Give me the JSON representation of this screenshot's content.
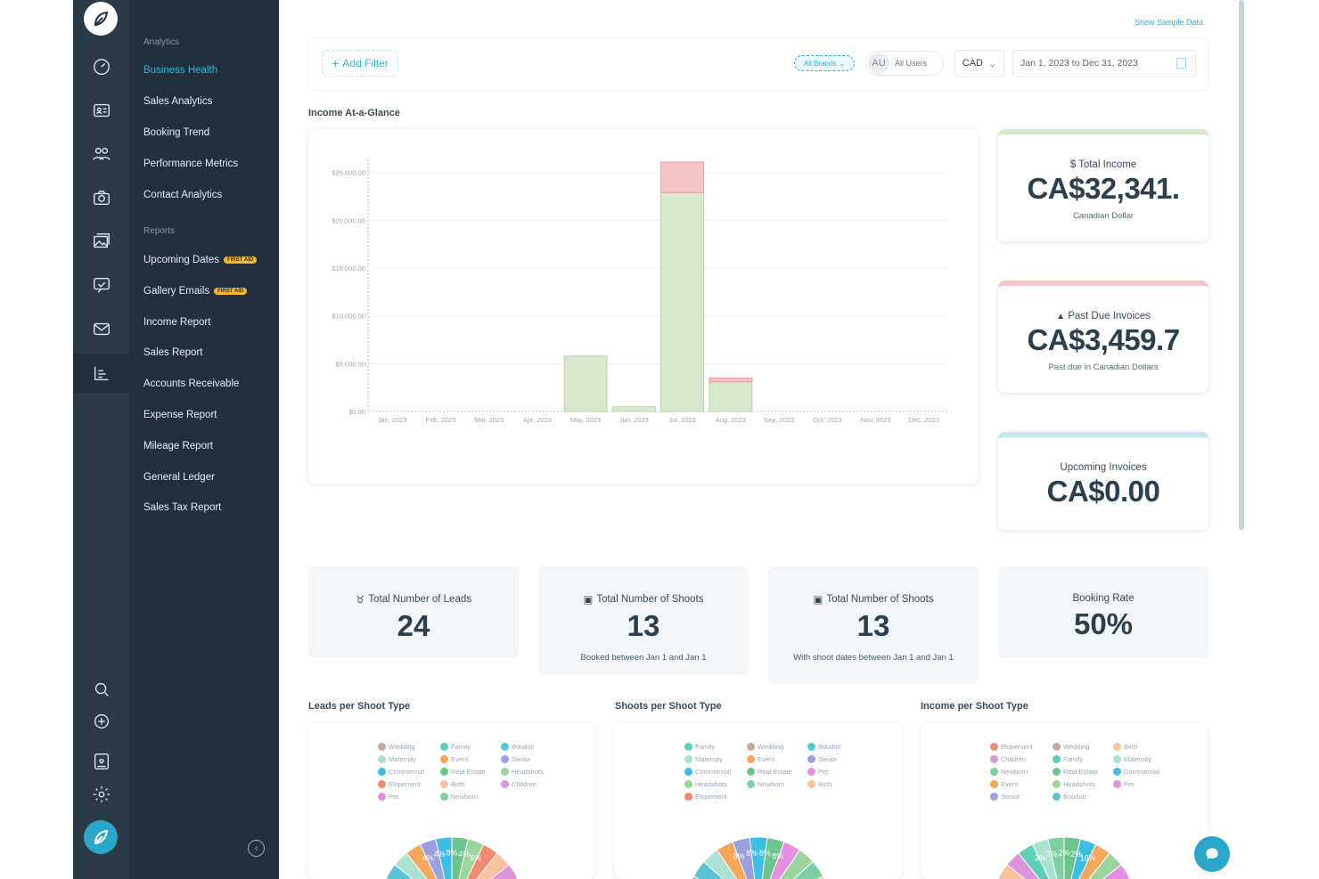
{
  "sidebar": {
    "section_analytics": "Analytics",
    "analytics_items": [
      "Business Health",
      "Sales Analytics",
      "Booking Trend",
      "Performance Metrics",
      "Contact Analytics"
    ],
    "section_reports": "Reports",
    "report_items": [
      {
        "label": "Upcoming Dates",
        "badge": "FIRST AID"
      },
      {
        "label": "Gallery Emails",
        "badge": "FIRST AID"
      },
      {
        "label": "Income Report",
        "badge": ""
      },
      {
        "label": "Sales Report",
        "badge": ""
      },
      {
        "label": "Accounts Receivable",
        "badge": ""
      },
      {
        "label": "Expense Report",
        "badge": ""
      },
      {
        "label": "Mileage Report",
        "badge": ""
      },
      {
        "label": "General Ledger",
        "badge": ""
      },
      {
        "label": "Sales Tax Report",
        "badge": ""
      }
    ],
    "active_item": "Business Health",
    "rail_icons": [
      "dashboard-icon",
      "contact-card-icon",
      "people-icon",
      "camera-icon",
      "gallery-icon",
      "chat-check-icon",
      "mail-icon",
      "reports-icon",
      "search-icon",
      "add-icon",
      "portal-icon",
      "gear-icon"
    ]
  },
  "header": {
    "show_sample": "Show Sample Data",
    "add_filter": "Add Filter",
    "brands": "All Brands",
    "user_initials": "AU",
    "users": "All Users",
    "currency": "CAD",
    "date_range": "Jan 1, 2023 to Dec 31, 2023"
  },
  "income_title": "Income At-a-Glance",
  "chart_data": {
    "type": "bar",
    "stacked": true,
    "categories": [
      "Jan, 2023",
      "Feb, 2023",
      "Mar, 2023",
      "Apr, 2023",
      "May, 2023",
      "Jun, 2023",
      "Jul, 2023",
      "Aug, 2023",
      "Sep, 2023",
      "Oct, 2023",
      "Nov, 2023",
      "Dec, 2023"
    ],
    "series": [
      {
        "values": [
          0,
          0,
          0,
          0,
          5800,
          500,
          22900,
          3100,
          0,
          0,
          0,
          0
        ],
        "color": "#d9e8cc"
      },
      {
        "values": [
          0,
          0,
          0,
          0,
          0,
          0,
          3200,
          400,
          0,
          0,
          0,
          0
        ],
        "color": "#f5c6c9"
      }
    ],
    "yticks": [
      "$0.00",
      "$5,000.00",
      "$10,000.00",
      "$15,000.00",
      "$20,000.00",
      "$25,000.00"
    ],
    "ylim": [
      0,
      26000
    ],
    "grid": true
  },
  "kpis": [
    {
      "title": "$ Total Income",
      "value": "CA$32,341.",
      "sub": "Canadian Dollar",
      "color": "#d9e8cc"
    },
    {
      "title": "Past Due Invoices",
      "value": "CA$3,459.7",
      "sub": "Past due in Canadian Dollars",
      "color": "#f5c6c9"
    },
    {
      "title": "Upcoming Invoices",
      "value": "CA$0.00",
      "sub": "",
      "color": "#c4e6ee"
    }
  ],
  "stats": [
    {
      "title": "Total Number of Leads",
      "value": "24",
      "sub": ""
    },
    {
      "title": "Total Number of Shoots",
      "value": "13",
      "sub": "Booked between Jan 1 and Jan 1"
    },
    {
      "title": "Total Number of Shoots",
      "value": "13",
      "sub": "With shoot dates between Jan 1 and Jan 1"
    },
    {
      "title": "Booking Rate",
      "value": "50%",
      "sub": ""
    }
  ],
  "pies": [
    {
      "title": "Leads per Shoot Type",
      "legend": [
        [
          "Wedding",
          "#c9a99b"
        ],
        [
          "Family",
          "#5ccfb6"
        ],
        [
          "Boudoir",
          "#5bc4d4"
        ],
        [
          "Maternity",
          "#a9e2d0"
        ],
        [
          "Event",
          "#f4a65a"
        ],
        [
          "Senior",
          "#9b9fe0"
        ],
        [
          "Commercial",
          "#3cbfe3"
        ],
        [
          "Real Estate",
          "#6bc48a"
        ],
        [
          "Headshots",
          "#9bd59e"
        ],
        [
          "Elopement",
          "#f08a6f"
        ],
        [
          "Birth",
          "#f9c19e"
        ],
        [
          "Children",
          "#df93df"
        ],
        [
          "Pet",
          "#e48fe0"
        ],
        [
          "Newborn",
          "#7ecfa4"
        ]
      ],
      "labels": [
        "4%",
        "4%",
        "8%",
        "4%",
        "8%"
      ]
    },
    {
      "title": "Shoots per Shoot Type",
      "legend": [
        [
          "Family",
          "#5ccfb6"
        ],
        [
          "Wedding",
          "#c9a99b"
        ],
        [
          "Boudoir",
          "#5bc4d4"
        ],
        [
          "Maternity",
          "#a9e2d0"
        ],
        [
          "Event",
          "#f4a65a"
        ],
        [
          "Senior",
          "#9b9fe0"
        ],
        [
          "Commercial",
          "#3cbfe3"
        ],
        [
          "Real Estate",
          "#6bc48a"
        ],
        [
          "Pet",
          "#e48fe0"
        ],
        [
          "Headshots",
          "#9bd59e"
        ],
        [
          "Newborn",
          "#7ecfa4"
        ],
        [
          "Birth",
          "#f9c19e"
        ],
        [
          "Elopement",
          "#f08a6f"
        ]
      ],
      "labels": [
        "8%",
        "8%",
        "8%",
        "8%"
      ]
    },
    {
      "title": "Income per Shoot Type",
      "legend": [
        [
          "Elopement",
          "#f08a6f"
        ],
        [
          "Wedding",
          "#c9a99b"
        ],
        [
          "Birth",
          "#f9c19e"
        ],
        [
          "Children",
          "#df93df"
        ],
        [
          "Family",
          "#5ccfb6"
        ],
        [
          "Maternity",
          "#a9e2d0"
        ],
        [
          "Newborn",
          "#7ecfa4"
        ],
        [
          "Real Estate",
          "#6bc48a"
        ],
        [
          "Commercial",
          "#3cbfe3"
        ],
        [
          "Event",
          "#f4a65a"
        ],
        [
          "Headshots",
          "#9bd59e"
        ],
        [
          "Pet",
          "#e48fe0"
        ],
        [
          "Senior",
          "#9b9fe0"
        ],
        [
          "Boudoir",
          "#5bc4d4"
        ]
      ],
      "labels": [
        "3%",
        "3%",
        "2%",
        "2%",
        "16%"
      ]
    }
  ]
}
